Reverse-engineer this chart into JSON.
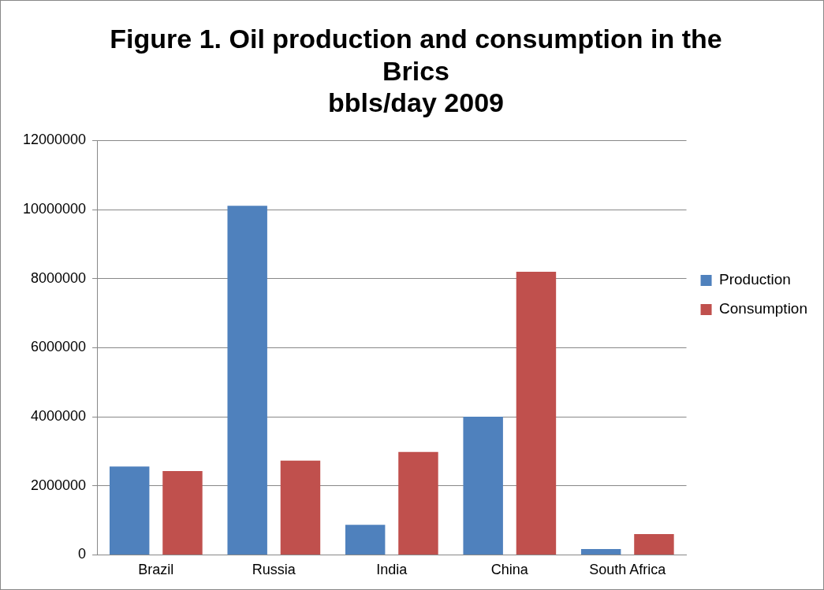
{
  "chart_data": {
    "type": "bar",
    "title": "Figure 1. Oil production and consumption in the Brics",
    "subtitle": "bbls/day 2009",
    "categories": [
      "Brazil",
      "Russia",
      "India",
      "China",
      "South Africa"
    ],
    "series": [
      {
        "name": "Production",
        "color": "#4f81bd",
        "values": [
          2560000,
          10110000,
          870000,
          4000000,
          170000
        ]
      },
      {
        "name": "Consumption",
        "color": "#c0504d",
        "values": [
          2430000,
          2730000,
          2980000,
          8200000,
          600000
        ]
      }
    ],
    "ylim": [
      0,
      12000000
    ],
    "yticks": [
      0,
      2000000,
      4000000,
      6000000,
      8000000,
      10000000,
      12000000
    ],
    "grid": "y",
    "legend": "right"
  }
}
